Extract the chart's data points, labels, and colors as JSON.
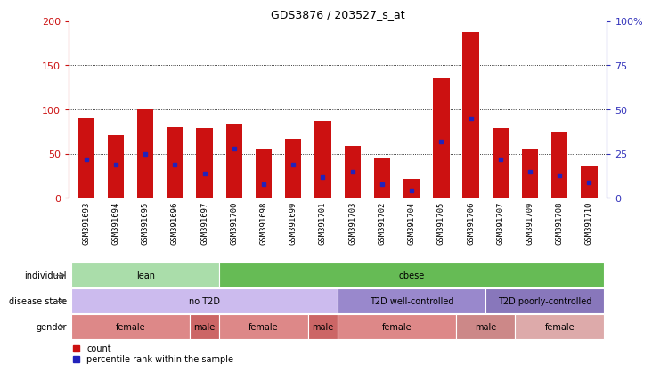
{
  "title": "GDS3876 / 203527_s_at",
  "samples": [
    "GSM391693",
    "GSM391694",
    "GSM391695",
    "GSM391696",
    "GSM391697",
    "GSM391700",
    "GSM391698",
    "GSM391699",
    "GSM391701",
    "GSM391703",
    "GSM391702",
    "GSM391704",
    "GSM391705",
    "GSM391706",
    "GSM391707",
    "GSM391709",
    "GSM391708",
    "GSM391710"
  ],
  "counts": [
    90,
    71,
    101,
    80,
    79,
    84,
    56,
    67,
    87,
    59,
    45,
    22,
    135,
    188,
    79,
    56,
    75,
    36
  ],
  "percentile_ranks": [
    22,
    19,
    25,
    19,
    14,
    28,
    8,
    19,
    12,
    15,
    8,
    4,
    32,
    45,
    22,
    15,
    13,
    9
  ],
  "bar_color": "#cc1111",
  "blue_color": "#2222bb",
  "left_ylim": [
    0,
    200
  ],
  "left_yticks": [
    0,
    50,
    100,
    150,
    200
  ],
  "right_yticks": [
    0,
    25,
    50,
    75,
    100
  ],
  "right_yticklabels": [
    "0",
    "25",
    "50",
    "75",
    "100%"
  ],
  "left_tick_color": "#cc1111",
  "right_tick_color": "#3333bb",
  "grid_yticks": [
    50,
    100,
    150
  ],
  "bg_color": "#ffffff",
  "xtick_bg": "#cccccc",
  "individual_row": {
    "label": "individual",
    "groups": [
      {
        "text": "lean",
        "start": 0,
        "end": 5,
        "color": "#aaddaa"
      },
      {
        "text": "obese",
        "start": 5,
        "end": 18,
        "color": "#66bb55"
      }
    ]
  },
  "disease_row": {
    "label": "disease state",
    "groups": [
      {
        "text": "no T2D",
        "start": 0,
        "end": 9,
        "color": "#ccbbee"
      },
      {
        "text": "T2D well-controlled",
        "start": 9,
        "end": 14,
        "color": "#9988cc"
      },
      {
        "text": "T2D poorly-controlled",
        "start": 14,
        "end": 18,
        "color": "#8877bb"
      }
    ]
  },
  "gender_row": {
    "label": "gender",
    "groups": [
      {
        "text": "female",
        "start": 0,
        "end": 4,
        "color": "#dd8888"
      },
      {
        "text": "male",
        "start": 4,
        "end": 5,
        "color": "#cc6666"
      },
      {
        "text": "female",
        "start": 5,
        "end": 8,
        "color": "#dd8888"
      },
      {
        "text": "male",
        "start": 8,
        "end": 9,
        "color": "#cc6666"
      },
      {
        "text": "female",
        "start": 9,
        "end": 13,
        "color": "#dd8888"
      },
      {
        "text": "male",
        "start": 13,
        "end": 15,
        "color": "#cc8888"
      },
      {
        "text": "female",
        "start": 15,
        "end": 18,
        "color": "#ddaaaa"
      }
    ]
  }
}
